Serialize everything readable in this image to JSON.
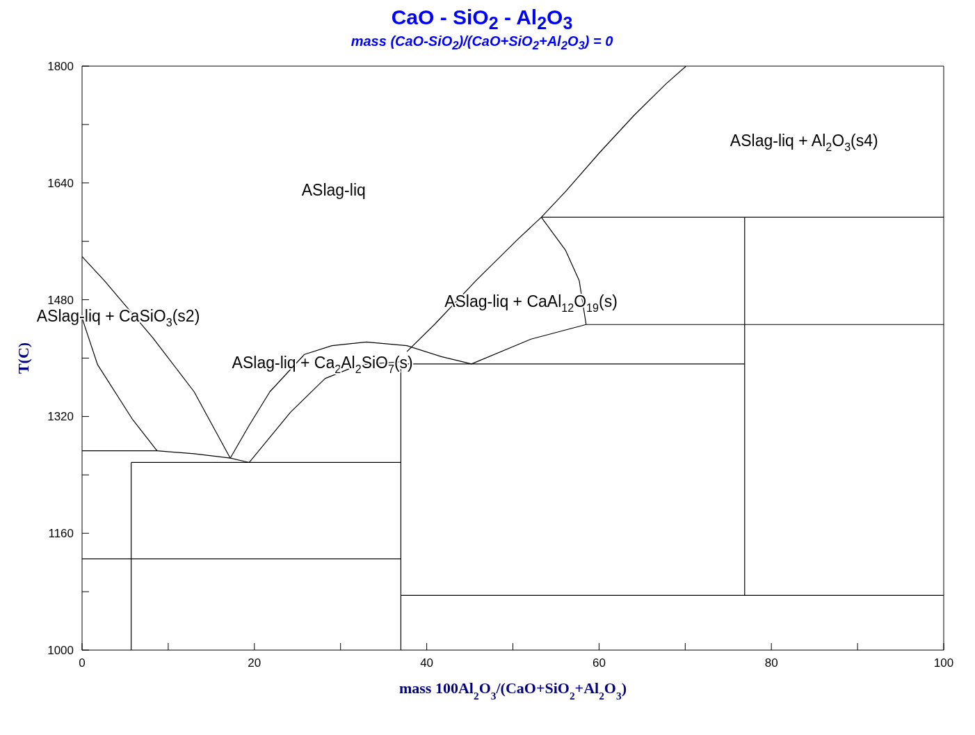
{
  "chart_data": {
    "type": "line",
    "title": "CaO - SiO$_{2}$ - Al$_{2}$O$_{3}$",
    "subtitle": "mass (CaO-SiO$_{2}$)/(CaO+SiO$_{2}$+Al$_{2}$O$_{3}$) = 0",
    "xlabel": "mass 100Al$_{2}$O$_{3}$/(CaO+SiO$_{2}$+Al$_{2}$O$_{3}$)",
    "ylabel": "T(C)",
    "marker": "none",
    "xlim": [
      0,
      100
    ],
    "ylim": [
      1000,
      1800
    ],
    "xticks": [
      0,
      {
        "value": 10,
        "label": null
      },
      20,
      {
        "value": 30,
        "label": null
      },
      40,
      {
        "value": 50,
        "label": null
      },
      60,
      {
        "value": 70,
        "label": null
      },
      80,
      {
        "value": 90,
        "label": null
      },
      100
    ],
    "yticks": [
      1000,
      {
        "value": 1080,
        "label": null
      },
      1160,
      {
        "value": 1240,
        "label": null
      },
      1320,
      {
        "value": 1400,
        "label": null
      },
      1480,
      {
        "value": 1560,
        "label": null
      },
      1640,
      {
        "value": 1720,
        "label": null
      },
      1800
    ],
    "series": [
      {
        "color": "#000000",
        "x": [
          37.7,
          40.9,
          45.7,
          50.5,
          53.3,
          56.1,
          60.1,
          64.1,
          67.8,
          70.1
        ],
        "values": [
          1409,
          1446,
          1506,
          1562,
          1593,
          1628,
          1682,
          1733,
          1776,
          1800
        ]
      },
      {
        "color": "#000000",
        "x": [
          53.3,
          56.1,
          57.7,
          58.5
        ],
        "values": [
          1593,
          1548,
          1506,
          1446
        ]
      },
      {
        "color": "#000000",
        "x": [
          45.2,
          52.1,
          58.5,
          100
        ],
        "values": [
          1392,
          1426,
          1446,
          1446
        ]
      },
      {
        "color": "#000000",
        "x": [
          17.2,
          19.4,
          21.8,
          25.8,
          29.0,
          33.0,
          37.7,
          41.7,
          45.2
        ],
        "values": [
          1263,
          1308,
          1354,
          1405,
          1417,
          1422,
          1417,
          1402,
          1392
        ]
      },
      {
        "color": "#000000",
        "x": [
          19.4,
          24.2,
          28.2,
          32.2,
          37.0
        ],
        "values": [
          1257,
          1326,
          1372,
          1391,
          1395
        ]
      },
      {
        "color": "#000000",
        "x": [
          0,
          2.6,
          8.2,
          13.0,
          17.2
        ],
        "values": [
          1539,
          1506,
          1428,
          1354,
          1263
        ]
      },
      {
        "color": "#000000",
        "x": [
          0,
          1.8,
          5.8,
          8.7
        ],
        "values": [
          1455,
          1391,
          1317,
          1273
        ]
      },
      {
        "color": "#000000",
        "x": [
          0,
          8.7,
          13.0,
          17.2,
          19.4
        ],
        "values": [
          1273,
          1273,
          1269,
          1263,
          1257
        ]
      },
      {
        "color": "#000000",
        "x": [
          5.7,
          37.0
        ],
        "values": [
          1257,
          1257
        ]
      },
      {
        "color": "#000000",
        "x": [
          5.7,
          5.7
        ],
        "values": [
          1257,
          1000
        ]
      },
      {
        "color": "#000000",
        "x": [
          0,
          37.0
        ],
        "values": [
          1125,
          1125
        ]
      },
      {
        "color": "#000000",
        "x": [
          37.0,
          37.0
        ],
        "values": [
          1000,
          1395
        ]
      },
      {
        "color": "#000000",
        "x": [
          37.0,
          76.9
        ],
        "values": [
          1392,
          1392
        ]
      },
      {
        "color": "#000000",
        "x": [
          53.3,
          100
        ],
        "values": [
          1593,
          1593
        ]
      },
      {
        "color": "#000000",
        "x": [
          76.9,
          76.9
        ],
        "values": [
          1593,
          1075
        ]
      },
      {
        "color": "#000000",
        "x": [
          37.0,
          100
        ],
        "values": [
          1075,
          1075
        ]
      }
    ],
    "annotations": [
      "ASlag-liq",
      "ASlag-liq + Al$_{2}$O$_{3}$(s4)",
      "ASlag-liq + CaAl$_{12}$O$_{19}$(s)",
      "ASlag-liq + CaSiO$_{3}$(s2)",
      "ASlag-liq + Ca$_{2}$Al$_{2}$SiO$_{7}$(s)"
    ]
  }
}
